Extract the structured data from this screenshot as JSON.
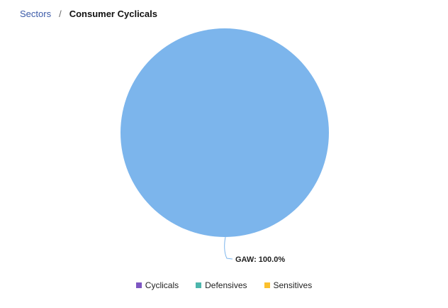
{
  "breadcrumb": {
    "parent": "Sectors",
    "separator": "/",
    "current": "Consumer Cyclicals"
  },
  "chart_data": {
    "type": "pie",
    "slices": [
      {
        "label": "GAW",
        "value": 100.0,
        "display": "GAW: 100.0%",
        "color": "#7cb5ec"
      }
    ],
    "legend": [
      {
        "name": "Cyclicals",
        "color": "#7e57c2"
      },
      {
        "name": "Defensives",
        "color": "#4db6ac"
      },
      {
        "name": "Sensitives",
        "color": "#fbc02d"
      }
    ],
    "legend_position": "bottom-center"
  }
}
